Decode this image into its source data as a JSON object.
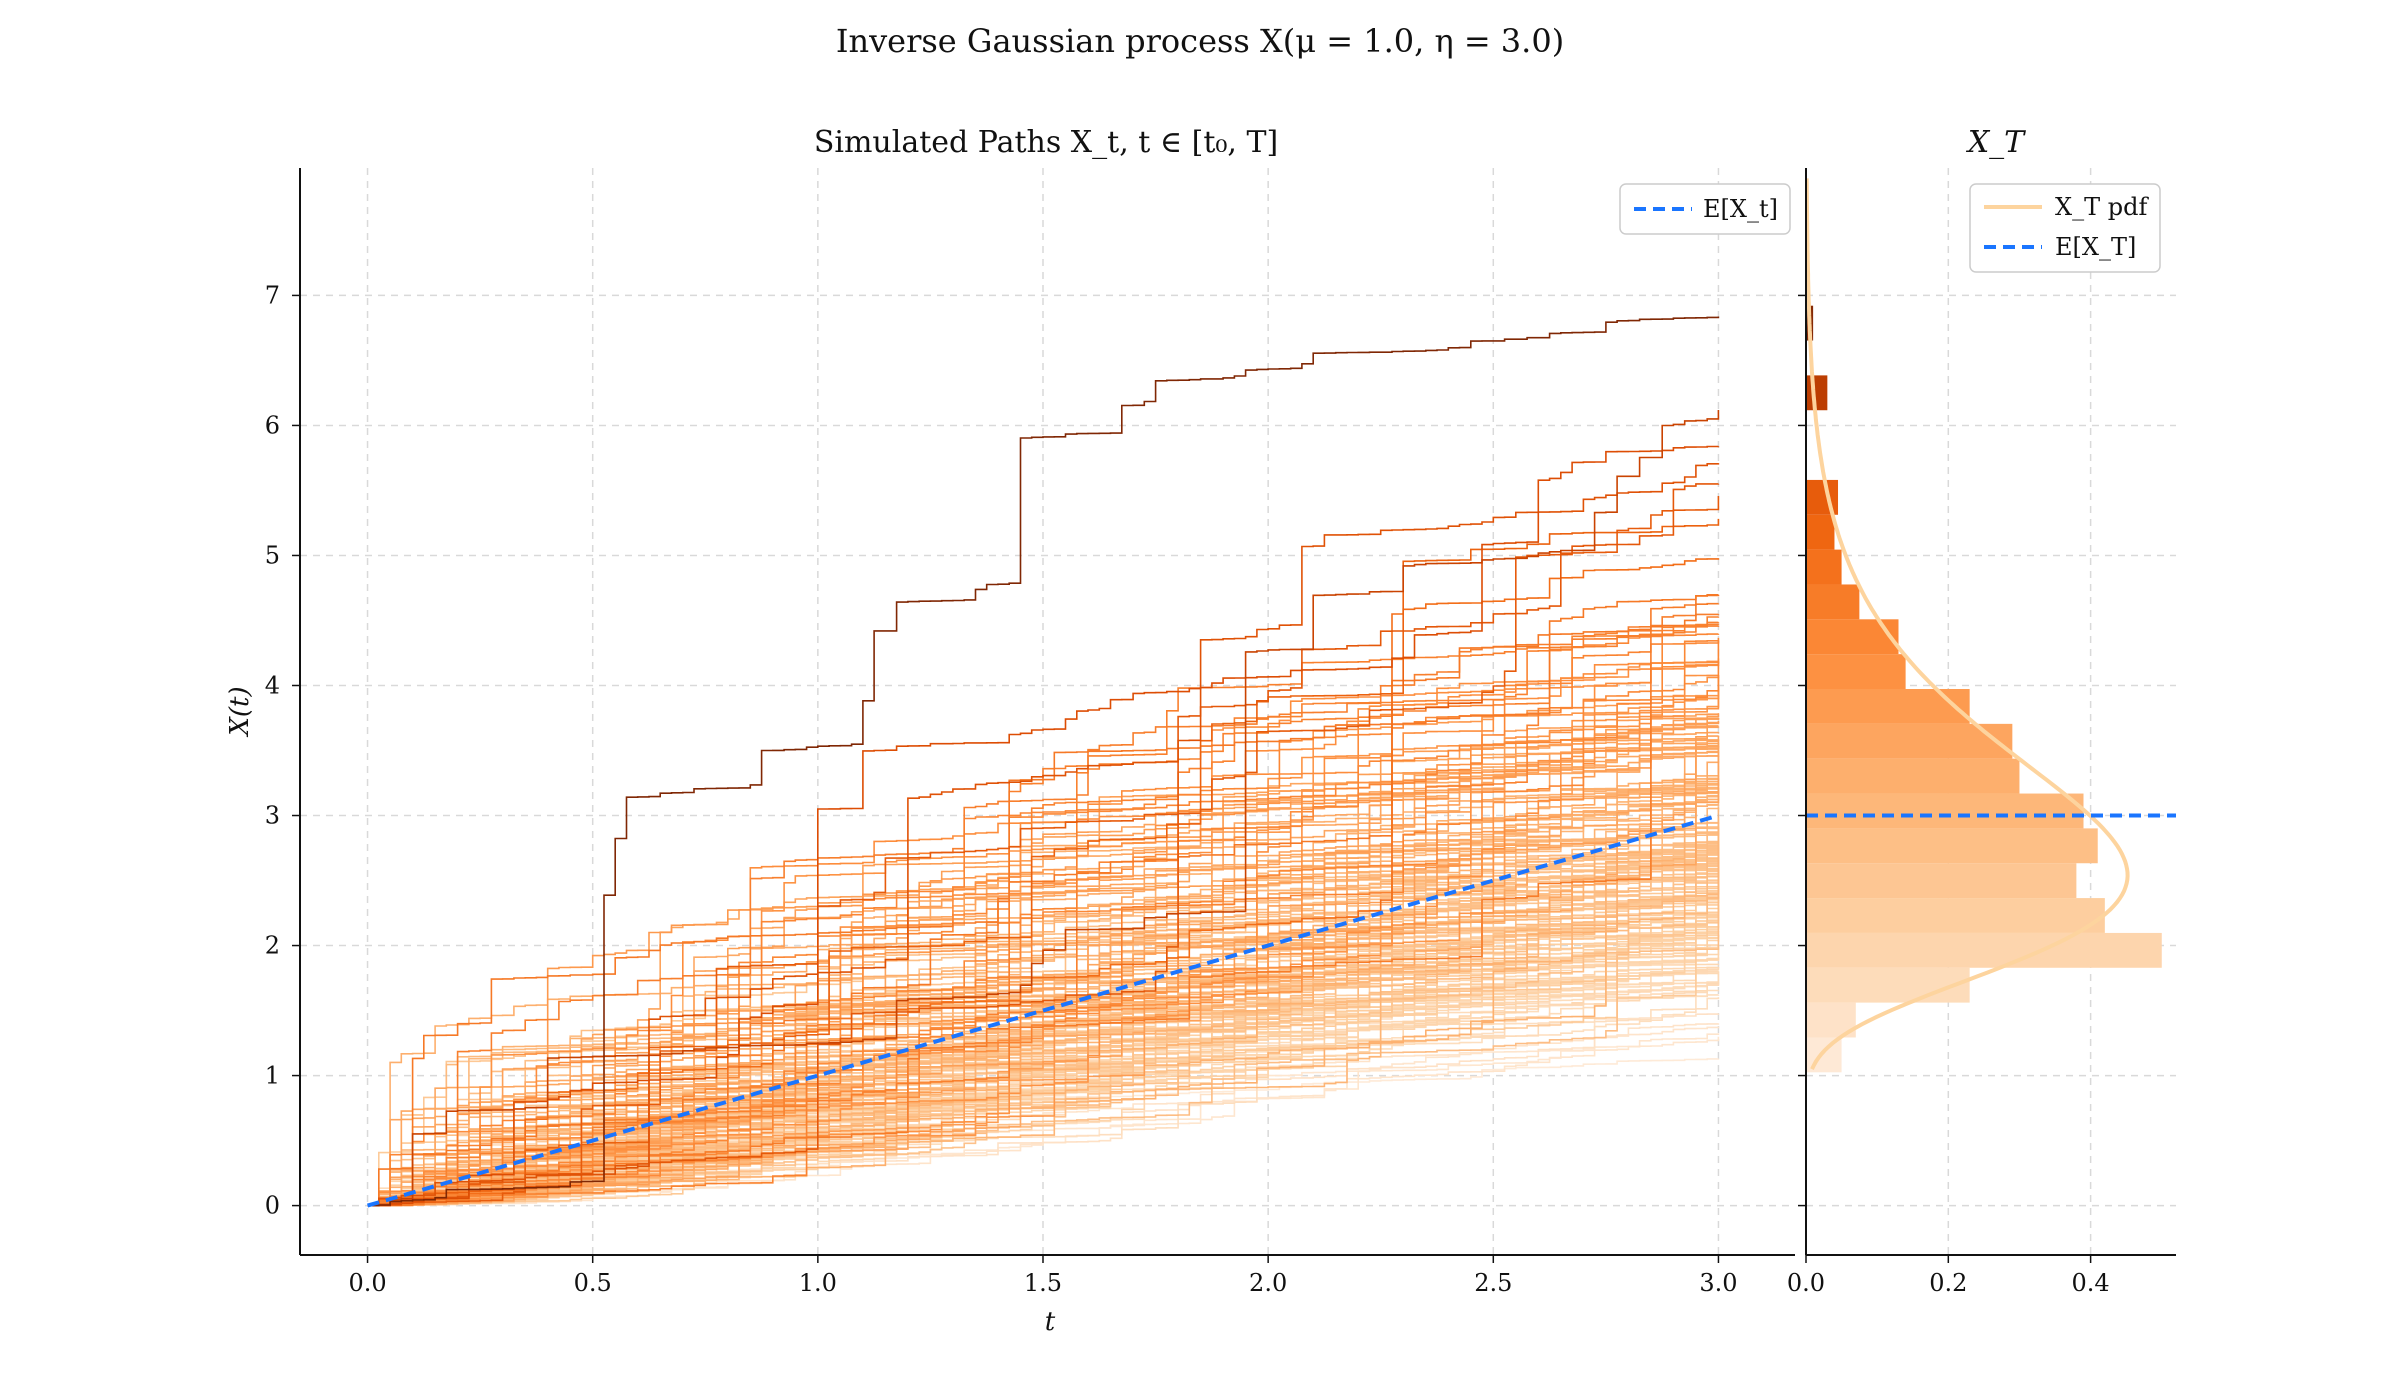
{
  "figure": {
    "suptitle": "Inverse Gaussian process X(μ = 1.0, η = 3.0)"
  },
  "colors": {
    "path_light": "#fee6ce",
    "path_mid": "#f16913",
    "path_dark": "#7f2704",
    "expectation": "#1a75ff",
    "pdf": "#fdd49e",
    "grid": "#d9d9d9"
  },
  "chart_data": [
    {
      "type": "line",
      "title": "Simulated Paths X_t, t ∈ [t₀, T]",
      "xlabel": "t",
      "ylabel": "X(t)",
      "xlim": [
        -0.15,
        3.17
      ],
      "ylim": [
        -0.38,
        7.98
      ],
      "xticks": [
        0.0,
        0.5,
        1.0,
        1.5,
        2.0,
        2.5,
        3.0
      ],
      "xtick_labels": [
        "0.0",
        "0.5",
        "1.0",
        "1.5",
        "2.0",
        "2.5",
        "3.0"
      ],
      "yticks": [
        0,
        1,
        2,
        3,
        4,
        5,
        6,
        7
      ],
      "ytick_labels": [
        "0",
        "1",
        "2",
        "3",
        "4",
        "5",
        "6",
        "7"
      ],
      "grid": true,
      "legend": {
        "position": "top-right",
        "entries": [
          "E[X_t]"
        ]
      },
      "simulated_paths": {
        "count": 200,
        "t_start": 0.0,
        "t_end": 3.0,
        "x_start": 0.0,
        "terminal_value_range": [
          1.0,
          6.85
        ],
        "colormap": "Oranges"
      },
      "series": [
        {
          "name": "E[X_t]",
          "style": "dashed",
          "x": [
            0.0,
            3.0
          ],
          "y": [
            0.0,
            3.0
          ]
        }
      ]
    },
    {
      "type": "bar",
      "orientation": "horizontal",
      "title": "X_T",
      "xlim": [
        0.0,
        0.52
      ],
      "ylim": [
        -0.38,
        7.98
      ],
      "xticks": [
        0.0,
        0.2,
        0.4
      ],
      "xtick_labels": [
        "0.0",
        "0.2",
        "0.4"
      ],
      "grid": true,
      "legend": {
        "position": "top-right",
        "entries": [
          "X_T pdf",
          "E[X_T]"
        ]
      },
      "histogram_bins": [
        {
          "y0": 1.025,
          "y1": 1.293,
          "density": 0.05
        },
        {
          "y0": 1.293,
          "y1": 1.561,
          "density": 0.07
        },
        {
          "y0": 1.561,
          "y1": 1.829,
          "density": 0.23
        },
        {
          "y0": 1.829,
          "y1": 2.097,
          "density": 0.5
        },
        {
          "y0": 2.097,
          "y1": 2.365,
          "density": 0.42
        },
        {
          "y0": 2.365,
          "y1": 2.633,
          "density": 0.38
        },
        {
          "y0": 2.633,
          "y1": 2.901,
          "density": 0.41
        },
        {
          "y0": 2.901,
          "y1": 3.169,
          "density": 0.39
        },
        {
          "y0": 3.169,
          "y1": 3.437,
          "density": 0.3
        },
        {
          "y0": 3.437,
          "y1": 3.705,
          "density": 0.29
        },
        {
          "y0": 3.705,
          "y1": 3.973,
          "density": 0.23
        },
        {
          "y0": 3.973,
          "y1": 4.241,
          "density": 0.14
        },
        {
          "y0": 4.241,
          "y1": 4.509,
          "density": 0.13
        },
        {
          "y0": 4.509,
          "y1": 4.777,
          "density": 0.075
        },
        {
          "y0": 4.777,
          "y1": 5.045,
          "density": 0.05
        },
        {
          "y0": 5.045,
          "y1": 5.313,
          "density": 0.04
        },
        {
          "y0": 5.313,
          "y1": 5.581,
          "density": 0.045
        },
        {
          "y0": 5.581,
          "y1": 5.849,
          "density": 0.0
        },
        {
          "y0": 5.849,
          "y1": 6.117,
          "density": 0.0
        },
        {
          "y0": 6.117,
          "y1": 6.385,
          "density": 0.03
        },
        {
          "y0": 6.385,
          "y1": 6.653,
          "density": 0.0
        },
        {
          "y0": 6.653,
          "y1": 6.921,
          "density": 0.01
        }
      ],
      "pdf": {
        "name": "X_T pdf",
        "mean": 3.0,
        "shape_lambda": 27.0,
        "y_range": [
          1.05,
          7.9
        ]
      },
      "series": [
        {
          "name": "E[X_T]",
          "style": "dashed",
          "y": 3.0
        }
      ]
    }
  ]
}
